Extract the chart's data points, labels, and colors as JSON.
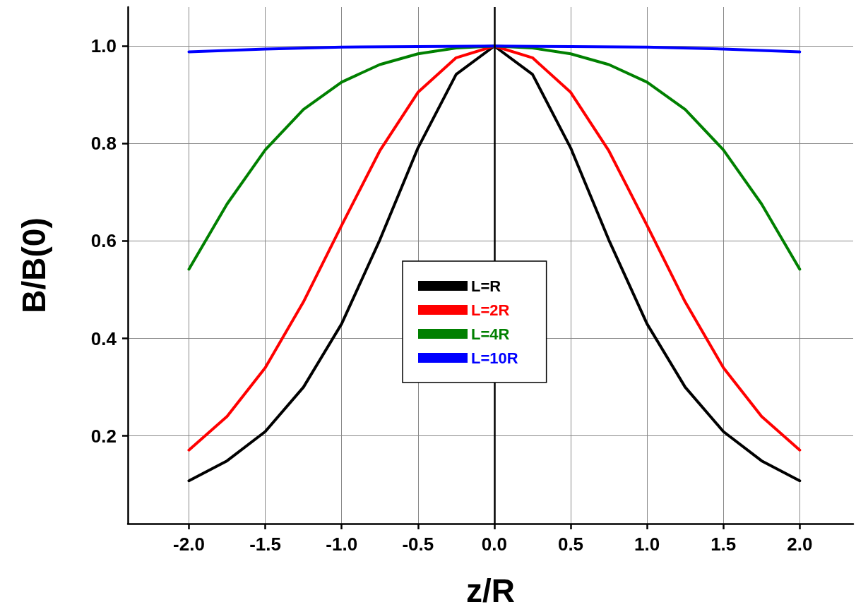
{
  "chart_data": {
    "type": "line",
    "xlabel": "z/R",
    "ylabel": "B/B(0)",
    "xlim": [
      -2.4,
      2.35
    ],
    "xticks": [
      {
        "value": -2,
        "label": "-2.0"
      },
      {
        "value": -1.5,
        "label": "-1.5"
      },
      {
        "value": -1,
        "label": "-1.0"
      },
      {
        "value": -0.5,
        "label": "-0.5"
      },
      {
        "value": 0,
        "label": "0.0"
      },
      {
        "value": 0.5,
        "label": "0.5"
      },
      {
        "value": 1,
        "label": "1.0"
      },
      {
        "value": 1.5,
        "label": "1.5"
      },
      {
        "value": 2,
        "label": "2.0"
      }
    ],
    "ylim": [
      0.02,
      1.08
    ],
    "yticks": [
      0.2,
      0.4,
      0.6,
      0.8,
      {
        "value": 1,
        "label": "1.0"
      }
    ],
    "grid": true,
    "legend": "center",
    "marker": "none",
    "line_style": "solid",
    "ref_lines": [
      {
        "axis": "x",
        "value": 0,
        "color": "#000000"
      }
    ],
    "series": [
      {
        "name": "L=R",
        "color": "#000000",
        "x": [
          -2,
          -1.75,
          -1.5,
          -1.25,
          -1,
          -0.75,
          -0.5,
          -0.25,
          0,
          0.25,
          0.5,
          0.75,
          1,
          1.25,
          1.5,
          1.75,
          2
        ],
        "values": [
          0.108,
          0.149,
          0.209,
          0.3,
          0.43,
          0.602,
          0.791,
          0.942,
          1,
          0.942,
          0.791,
          0.602,
          0.43,
          0.3,
          0.209,
          0.149,
          0.108
        ]
      },
      {
        "name": "L=2R",
        "color": "#ff0000",
        "x": [
          -2,
          -1.75,
          -1.5,
          -1.25,
          -1,
          -0.75,
          -0.5,
          -0.25,
          0,
          0.25,
          0.5,
          0.75,
          1,
          1.25,
          1.5,
          1.75,
          2
        ],
        "values": [
          0.171,
          0.24,
          0.34,
          0.475,
          0.632,
          0.785,
          0.905,
          0.976,
          1,
          0.976,
          0.905,
          0.785,
          0.632,
          0.475,
          0.34,
          0.24,
          0.171
        ]
      },
      {
        "name": "L=4R",
        "color": "#008000",
        "x": [
          -2,
          -1.75,
          -1.5,
          -1.25,
          -1,
          -0.75,
          -0.5,
          -0.25,
          0,
          0.25,
          0.5,
          0.75,
          1,
          1.25,
          1.5,
          1.75,
          2
        ],
        "values": [
          0.542,
          0.676,
          0.787,
          0.87,
          0.926,
          0.962,
          0.984,
          0.996,
          1,
          0.996,
          0.984,
          0.962,
          0.926,
          0.87,
          0.787,
          0.676,
          0.542
        ]
      },
      {
        "name": "L=10R",
        "color": "#0000ff",
        "x": [
          -2,
          -1.5,
          -1,
          -0.5,
          0,
          0.5,
          1,
          1.5,
          2
        ],
        "values": [
          0.988,
          0.994,
          0.998,
          0.999,
          1,
          0.999,
          0.998,
          0.994,
          0.988
        ]
      }
    ]
  }
}
